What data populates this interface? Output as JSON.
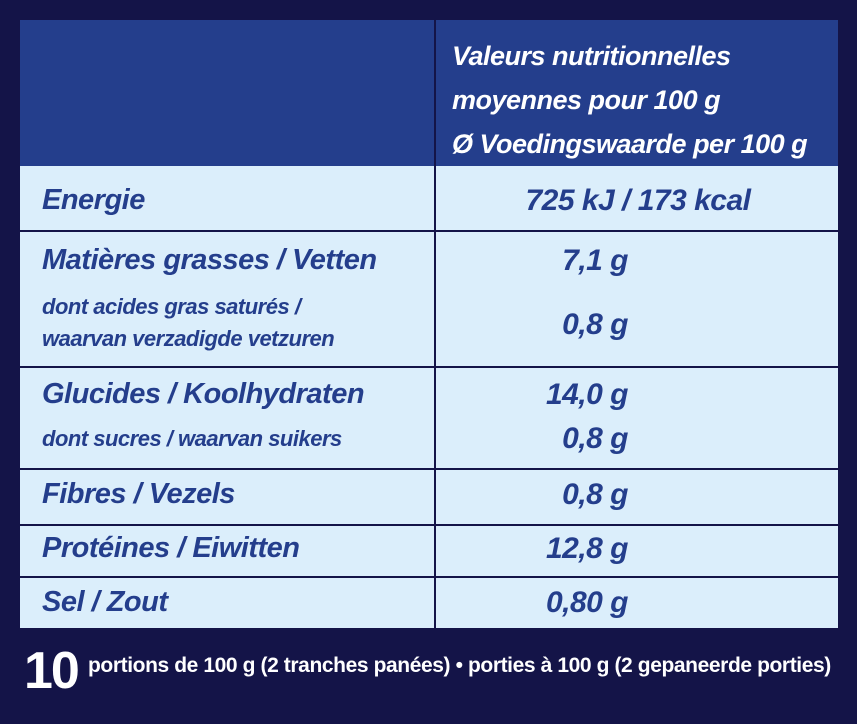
{
  "header": {
    "line1": "Valeurs nutritionnelles",
    "line2": "moyennes pour 100 g",
    "line3": "Ø Voedingswaarde per 100 g"
  },
  "rows": {
    "energy": {
      "label": "Energie",
      "value": "725 kJ / 173 kcal"
    },
    "fat": {
      "label": "Matières grasses / Vetten",
      "value": "7,1 g"
    },
    "saturated": {
      "label_line1": "dont acides gras saturés /",
      "label_line2": "waarvan verzadigde vetzuren",
      "value": "0,8 g"
    },
    "carbs": {
      "label": "Glucides / Koolhydraten",
      "value": "14,0 g"
    },
    "sugars": {
      "label": "dont sucres / waarvan suikers",
      "value": "0,8 g"
    },
    "fibre": {
      "label": "Fibres / Vezels",
      "value": "0,8 g"
    },
    "protein": {
      "label": "Protéines / Eiwitten",
      "value": "12,8 g"
    },
    "salt": {
      "label": "Sel / Zout",
      "value": "0,80 g"
    }
  },
  "footer": {
    "count": "10",
    "text": "portions de 100 g (2 tranches panées) • porties à 100 g (2 gepaneerde porties)"
  },
  "colors": {
    "frame": "#141448",
    "header_bg": "#243e8c",
    "body_bg": "#dbeefb",
    "text_blue": "#243e8c"
  }
}
